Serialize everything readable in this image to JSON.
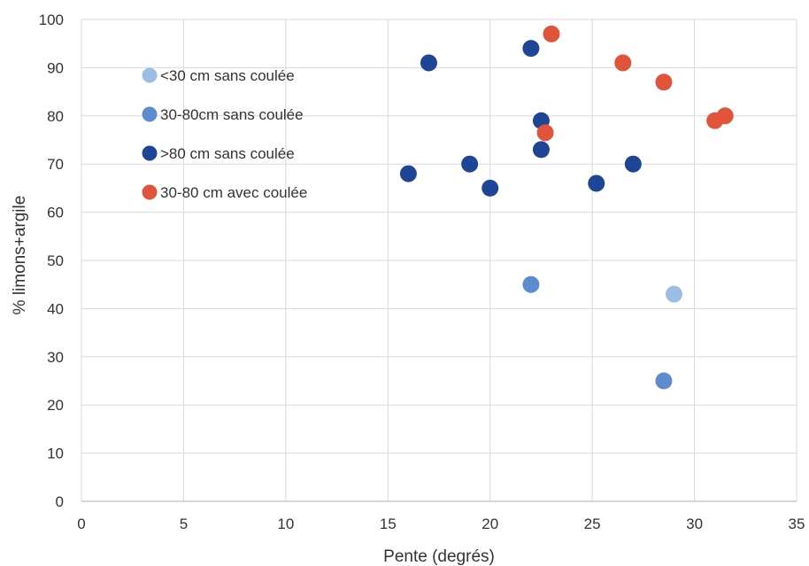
{
  "chart_data": {
    "type": "scatter",
    "title": "",
    "xlabel": "Pente (degrés)",
    "ylabel": "% limons+argile",
    "xlim": [
      0,
      35
    ],
    "ylim": [
      0,
      100
    ],
    "x_ticks": [
      "0",
      "5",
      "10",
      "15",
      "20",
      "25",
      "30",
      "35"
    ],
    "y_ticks": [
      "0",
      "10",
      "20",
      "30",
      "40",
      "50",
      "60",
      "70",
      "80",
      "90",
      "100"
    ],
    "grid": true,
    "legend_position": "top-left",
    "series": [
      {
        "name": "<30 cm sans coulée",
        "color": "#9dbde2",
        "points": [
          {
            "x": 29.0,
            "y": 43
          }
        ]
      },
      {
        "name": "30-80cm sans coulée",
        "color": "#5b8ccf",
        "points": [
          {
            "x": 22.0,
            "y": 45
          },
          {
            "x": 28.5,
            "y": 25
          }
        ]
      },
      {
        "name": ">80 cm sans coulée",
        "color": "#1f4596",
        "points": [
          {
            "x": 16.0,
            "y": 68
          },
          {
            "x": 17.0,
            "y": 91
          },
          {
            "x": 19.0,
            "y": 70
          },
          {
            "x": 20.0,
            "y": 65
          },
          {
            "x": 22.0,
            "y": 94
          },
          {
            "x": 22.5,
            "y": 79
          },
          {
            "x": 22.5,
            "y": 73
          },
          {
            "x": 25.2,
            "y": 66
          },
          {
            "x": 27.0,
            "y": 70
          }
        ]
      },
      {
        "name": "30-80 cm avec coulée",
        "color": "#e0543a",
        "points": [
          {
            "x": 22.7,
            "y": 76.5
          },
          {
            "x": 23.0,
            "y": 97
          },
          {
            "x": 26.5,
            "y": 91
          },
          {
            "x": 28.5,
            "y": 87
          },
          {
            "x": 31.0,
            "y": 79
          },
          {
            "x": 31.5,
            "y": 80
          }
        ]
      }
    ]
  }
}
